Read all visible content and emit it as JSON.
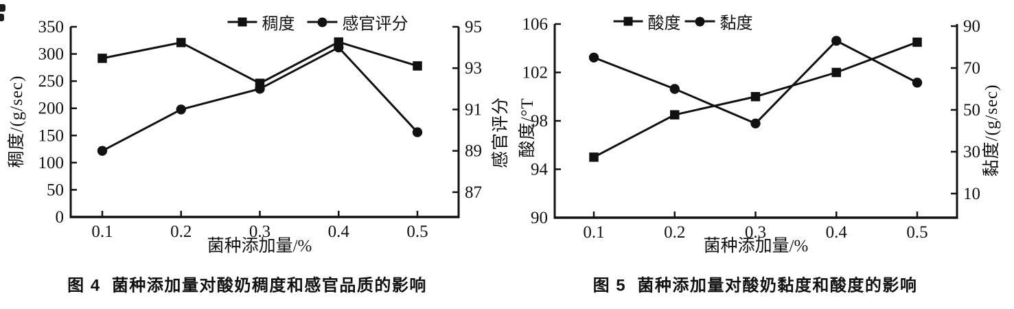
{
  "page": {
    "background": "#ffffff",
    "ink": "#111111",
    "type_description": "two black-and-white scientific line charts from a Chinese journal paper"
  },
  "chart_data": [
    {
      "type": "line",
      "caption": "图 4  菌种添加量对酸奶稠度和感官品质的影响",
      "x": [
        0.1,
        0.2,
        0.3,
        0.4,
        0.5
      ],
      "x_tick_labels": [
        "0.1",
        "0.2",
        "0.3",
        "0.4",
        "0.5"
      ],
      "xlabel": "菌种添加量/%",
      "grid": false,
      "legend_position": "top-center",
      "axes": {
        "left": {
          "label": "稠度/(g/sec)",
          "min": 0,
          "max": 350,
          "ticks": [
            0,
            50,
            100,
            150,
            200,
            250,
            300,
            350
          ]
        },
        "right": {
          "label": "感官评分",
          "min": 85.8,
          "max": 95,
          "ticks": [
            87,
            89,
            91,
            93,
            95
          ]
        }
      },
      "series": [
        {
          "name": "稠度",
          "marker": "square",
          "axis": "left",
          "values": [
            292,
            321,
            246,
            322,
            278
          ]
        },
        {
          "name": "感官评分",
          "marker": "circle",
          "axis": "right",
          "values": [
            89.0,
            91.0,
            92.0,
            94.0,
            89.9
          ]
        }
      ]
    },
    {
      "type": "line",
      "caption": "图 5  菌种添加量对酸奶黏度和酸度的影响",
      "x": [
        0.1,
        0.2,
        0.3,
        0.4,
        0.5
      ],
      "x_tick_labels": [
        "0.1",
        "0.2",
        "0.3",
        "0.4",
        "0.5"
      ],
      "xlabel": "菌种添加量/%",
      "grid": false,
      "legend_position": "top-center",
      "axes": {
        "left": {
          "label": "酸度/°T",
          "min": 90,
          "max": 106,
          "ticks": [
            90,
            94,
            98,
            102,
            106
          ]
        },
        "right": {
          "label": "黏度/(g/sec)",
          "min": -1.5,
          "max": 91,
          "ticks": [
            10,
            30,
            50,
            70,
            90
          ]
        }
      },
      "series": [
        {
          "name": "酸度",
          "marker": "square",
          "axis": "left",
          "values": [
            95.0,
            98.5,
            100.0,
            102.0,
            104.5
          ]
        },
        {
          "name": "黏度",
          "marker": "circle",
          "axis": "right",
          "values": [
            75,
            60,
            43.5,
            83,
            63
          ]
        }
      ]
    }
  ]
}
